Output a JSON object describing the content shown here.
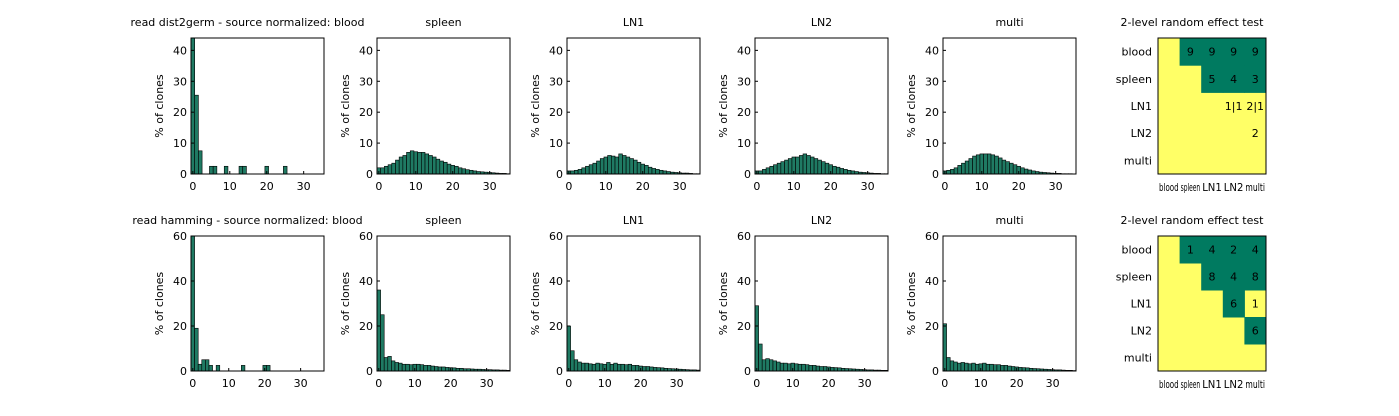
{
  "colors": {
    "bar": "#1f7a63",
    "bar_edge": "#000000",
    "axis": "#000000",
    "heat_low": "#ffff66",
    "heat_high": "#007a60"
  },
  "chart_data": [
    {
      "type": "bar",
      "title": "read  dist2germ - source normalized: blood",
      "ylabel": "% of clones",
      "xlim": [
        -0.5,
        35.5
      ],
      "ylim": [
        0,
        44
      ],
      "xticks": [
        0,
        10,
        20,
        30
      ],
      "yticks": [
        0,
        10,
        20,
        30,
        40
      ],
      "x": [
        0,
        1,
        2,
        3,
        4,
        5,
        6,
        7,
        8,
        9,
        10,
        11,
        12,
        13,
        14,
        15,
        16,
        17,
        18,
        19,
        20,
        21,
        22,
        23,
        24,
        25,
        26,
        27,
        28,
        29,
        30,
        31,
        32,
        33,
        34,
        35
      ],
      "values": [
        44,
        25.5,
        7.5,
        0,
        0,
        2.5,
        2.5,
        0,
        0,
        2.5,
        0,
        0,
        0,
        2.5,
        2.5,
        0,
        0,
        0,
        0,
        0,
        2.5,
        0,
        0,
        0,
        0,
        2.5,
        0,
        0,
        0,
        0,
        0,
        0,
        0,
        0,
        0,
        0
      ]
    },
    {
      "type": "bar",
      "title": "spleen",
      "ylabel": "% of clones",
      "xlim": [
        -0.5,
        35.5
      ],
      "ylim": [
        0,
        44
      ],
      "xticks": [
        0,
        10,
        20,
        30
      ],
      "yticks": [
        0,
        10,
        20,
        30,
        40
      ],
      "x": [
        0,
        1,
        2,
        3,
        4,
        5,
        6,
        7,
        8,
        9,
        10,
        11,
        12,
        13,
        14,
        15,
        16,
        17,
        18,
        19,
        20,
        21,
        22,
        23,
        24,
        25,
        26,
        27,
        28,
        29,
        30,
        31,
        32,
        33,
        34,
        35
      ],
      "values": [
        2,
        2,
        2.5,
        3,
        3.5,
        4.5,
        5.5,
        6,
        7,
        7.5,
        7.2,
        7,
        7,
        6.5,
        6,
        5.5,
        4.8,
        4.2,
        3.8,
        3.2,
        2.8,
        2.5,
        2,
        1.7,
        1.4,
        1.2,
        1,
        0.8,
        0.7,
        0.6,
        0.5,
        0.4,
        0.3,
        0.2,
        0.2,
        0.1
      ]
    },
    {
      "type": "bar",
      "title": "LN1",
      "ylabel": "% of clones",
      "xlim": [
        -0.5,
        35.5
      ],
      "ylim": [
        0,
        44
      ],
      "xticks": [
        0,
        10,
        20,
        30
      ],
      "yticks": [
        0,
        10,
        20,
        30,
        40
      ],
      "x": [
        0,
        1,
        2,
        3,
        4,
        5,
        6,
        7,
        8,
        9,
        10,
        11,
        12,
        13,
        14,
        15,
        16,
        17,
        18,
        19,
        20,
        21,
        22,
        23,
        24,
        25,
        26,
        27,
        28,
        29,
        30,
        31,
        32,
        33,
        34,
        35
      ],
      "values": [
        1,
        1,
        1.2,
        1.5,
        2,
        2.5,
        3,
        3.5,
        4.2,
        5,
        5.5,
        6,
        5.8,
        5.5,
        6.5,
        6,
        5.5,
        5,
        4.5,
        3.8,
        3.2,
        2.8,
        2.2,
        1.8,
        1.5,
        1.2,
        1,
        0.8,
        0.6,
        0.5,
        0.4,
        0.3,
        0.3,
        0.2,
        0.1,
        0.1
      ]
    },
    {
      "type": "bar",
      "title": "LN2",
      "ylabel": "% of clones",
      "xlim": [
        -0.5,
        35.5
      ],
      "ylim": [
        0,
        44
      ],
      "xticks": [
        0,
        10,
        20,
        30
      ],
      "yticks": [
        0,
        10,
        20,
        30,
        40
      ],
      "x": [
        0,
        1,
        2,
        3,
        4,
        5,
        6,
        7,
        8,
        9,
        10,
        11,
        12,
        13,
        14,
        15,
        16,
        17,
        18,
        19,
        20,
        21,
        22,
        23,
        24,
        25,
        26,
        27,
        28,
        29,
        30,
        31,
        32,
        33,
        34,
        35
      ],
      "values": [
        1,
        1,
        1.5,
        2,
        2.5,
        3,
        3.5,
        4,
        4.5,
        5,
        5.5,
        5.5,
        6,
        6.5,
        6,
        5.5,
        5,
        4.5,
        4,
        3.5,
        3,
        2.5,
        2.2,
        1.8,
        1.5,
        1.2,
        1,
        0.8,
        0.6,
        0.5,
        0.4,
        0.3,
        0.2,
        0.2,
        0.1,
        0.1
      ]
    },
    {
      "type": "bar",
      "title": "multi",
      "ylabel": "% of clones",
      "xlim": [
        -0.5,
        35.5
      ],
      "ylim": [
        0,
        44
      ],
      "xticks": [
        0,
        10,
        20,
        30
      ],
      "yticks": [
        0,
        10,
        20,
        30,
        40
      ],
      "x": [
        0,
        1,
        2,
        3,
        4,
        5,
        6,
        7,
        8,
        9,
        10,
        11,
        12,
        13,
        14,
        15,
        16,
        17,
        18,
        19,
        20,
        21,
        22,
        23,
        24,
        25,
        26,
        27,
        28,
        29,
        30,
        31,
        32,
        33,
        34,
        35
      ],
      "values": [
        1,
        1.2,
        1.5,
        2,
        2.8,
        3.5,
        4.2,
        5,
        5.8,
        6.2,
        6.5,
        6.5,
        6.5,
        6.2,
        5.8,
        5.2,
        4.5,
        4,
        3.5,
        3,
        2.5,
        2,
        1.6,
        1.3,
        1,
        0.8,
        0.6,
        0.5,
        0.4,
        0.3,
        0.2,
        0.2,
        0.1,
        0.1,
        0.1,
        0
      ]
    },
    {
      "type": "heatmap",
      "title": "2-level random effect test",
      "categories": [
        "blood",
        "spleen",
        "LN1",
        "LN2",
        "multi"
      ],
      "cells": [
        {
          "row": 0,
          "col": 1,
          "color": "high",
          "label": "9"
        },
        {
          "row": 0,
          "col": 2,
          "color": "high",
          "label": "9"
        },
        {
          "row": 0,
          "col": 3,
          "color": "high",
          "label": "9"
        },
        {
          "row": 0,
          "col": 4,
          "color": "high",
          "label": "9"
        },
        {
          "row": 1,
          "col": 2,
          "color": "high",
          "label": "5"
        },
        {
          "row": 1,
          "col": 3,
          "color": "high",
          "label": "4"
        },
        {
          "row": 1,
          "col": 4,
          "color": "high",
          "label": "3"
        },
        {
          "row": 2,
          "col": 3,
          "color": "low",
          "label": "1|1"
        },
        {
          "row": 2,
          "col": 4,
          "color": "low",
          "label": "2|1"
        },
        {
          "row": 3,
          "col": 4,
          "color": "low",
          "label": "2"
        }
      ]
    },
    {
      "type": "bar",
      "title": "read hamming - source normalized: blood",
      "ylabel": "% of clones",
      "xlim": [
        -0.5,
        36.5
      ],
      "ylim": [
        0,
        60
      ],
      "xticks": [
        0,
        10,
        20,
        30
      ],
      "yticks": [
        0,
        20,
        40,
        60
      ],
      "x": [
        0,
        1,
        2,
        3,
        4,
        5,
        6,
        7,
        8,
        9,
        10,
        11,
        12,
        13,
        14,
        15,
        16,
        17,
        18,
        19,
        20,
        21,
        22,
        23,
        24,
        25,
        26,
        27,
        28,
        29,
        30,
        31,
        32,
        33,
        34,
        35,
        36
      ],
      "values": [
        60,
        19,
        3,
        5,
        5,
        2.5,
        0,
        2.5,
        0,
        0,
        0,
        0,
        0,
        0,
        2.5,
        0,
        0,
        0,
        0,
        0,
        2.5,
        2.5,
        0,
        0,
        0,
        0,
        0,
        0,
        0,
        0,
        0,
        0,
        0,
        0,
        0,
        0,
        0
      ]
    },
    {
      "type": "bar",
      "title": "spleen",
      "ylabel": "% of clones",
      "xlim": [
        -0.5,
        36.5
      ],
      "ylim": [
        0,
        60
      ],
      "xticks": [
        0,
        10,
        20,
        30
      ],
      "yticks": [
        0,
        20,
        40,
        60
      ],
      "x": [
        0,
        1,
        2,
        3,
        4,
        5,
        6,
        7,
        8,
        9,
        10,
        11,
        12,
        13,
        14,
        15,
        16,
        17,
        18,
        19,
        20,
        21,
        22,
        23,
        24,
        25,
        26,
        27,
        28,
        29,
        30,
        31,
        32,
        33,
        34,
        35,
        36
      ],
      "values": [
        36,
        25,
        6,
        6.5,
        4.5,
        3.8,
        3.5,
        3,
        3,
        2.8,
        3,
        3,
        2.8,
        2.5,
        2.5,
        2.2,
        2,
        1.8,
        1.8,
        1.6,
        1.5,
        1.4,
        1.2,
        1.2,
        1,
        1,
        0.9,
        0.8,
        0.8,
        0.7,
        0.6,
        0.6,
        0.5,
        0.5,
        0.4,
        0.4,
        0.3
      ]
    },
    {
      "type": "bar",
      "title": "LN1",
      "ylabel": "% of clones",
      "xlim": [
        -0.5,
        36.5
      ],
      "ylim": [
        0,
        60
      ],
      "xticks": [
        0,
        10,
        20,
        30
      ],
      "yticks": [
        0,
        20,
        40,
        60
      ],
      "x": [
        0,
        1,
        2,
        3,
        4,
        5,
        6,
        7,
        8,
        9,
        10,
        11,
        12,
        13,
        14,
        15,
        16,
        17,
        18,
        19,
        20,
        21,
        22,
        23,
        24,
        25,
        26,
        27,
        28,
        29,
        30,
        31,
        32,
        33,
        34,
        35,
        36
      ],
      "values": [
        20,
        9,
        5,
        4,
        3.5,
        3.5,
        3.2,
        3,
        3.5,
        3.2,
        3,
        3.8,
        3,
        3.5,
        3,
        3,
        2.8,
        3,
        2.5,
        2.5,
        2.2,
        2,
        2,
        1.8,
        1.6,
        1.5,
        1.4,
        1.2,
        1.1,
        1,
        0.9,
        0.8,
        0.7,
        0.6,
        0.5,
        0.5,
        0.4
      ]
    },
    {
      "type": "bar",
      "title": "LN2",
      "ylabel": "% of clones",
      "xlim": [
        -0.5,
        36.5
      ],
      "ylim": [
        0,
        60
      ],
      "xticks": [
        0,
        10,
        20,
        30
      ],
      "yticks": [
        0,
        20,
        40,
        60
      ],
      "x": [
        0,
        1,
        2,
        3,
        4,
        5,
        6,
        7,
        8,
        9,
        10,
        11,
        12,
        13,
        14,
        15,
        16,
        17,
        18,
        19,
        20,
        21,
        22,
        23,
        24,
        25,
        26,
        27,
        28,
        29,
        30,
        31,
        32,
        33,
        34,
        35,
        36
      ],
      "values": [
        29,
        12,
        5,
        5.5,
        5,
        4.5,
        4,
        3.5,
        3.5,
        3.2,
        3.5,
        3.2,
        3,
        3,
        2.8,
        2.5,
        2.5,
        2.2,
        2,
        2,
        1.8,
        1.6,
        1.5,
        1.4,
        1.2,
        1.1,
        1,
        0.9,
        0.8,
        0.7,
        0.6,
        0.5,
        0.5,
        0.4,
        0.4,
        0.3,
        0.3
      ]
    },
    {
      "type": "bar",
      "title": "multi",
      "ylabel": "% of clones",
      "xlim": [
        -0.5,
        36.5
      ],
      "ylim": [
        0,
        60
      ],
      "xticks": [
        0,
        10,
        20,
        30
      ],
      "yticks": [
        0,
        20,
        40,
        60
      ],
      "x": [
        0,
        1,
        2,
        3,
        4,
        5,
        6,
        7,
        8,
        9,
        10,
        11,
        12,
        13,
        14,
        15,
        16,
        17,
        18,
        19,
        20,
        21,
        22,
        23,
        24,
        25,
        26,
        27,
        28,
        29,
        30,
        31,
        32,
        33,
        34,
        35,
        36
      ],
      "values": [
        21,
        6,
        4.5,
        4,
        3.5,
        3.8,
        3.5,
        3.2,
        3.5,
        3,
        3.2,
        3.5,
        3,
        3,
        2.8,
        2.8,
        2.5,
        2.5,
        2.2,
        2,
        1.8,
        1.6,
        1.5,
        1.4,
        1.2,
        1.1,
        1,
        0.9,
        0.8,
        0.7,
        0.6,
        0.5,
        0.5,
        0.4,
        0.3,
        0.3,
        0.2
      ]
    },
    {
      "type": "heatmap",
      "title": "2-level random effect test",
      "categories": [
        "blood",
        "spleen",
        "LN1",
        "LN2",
        "multi"
      ],
      "cells": [
        {
          "row": 0,
          "col": 1,
          "color": "high",
          "label": "1"
        },
        {
          "row": 0,
          "col": 2,
          "color": "high",
          "label": "4"
        },
        {
          "row": 0,
          "col": 3,
          "color": "high",
          "label": "2"
        },
        {
          "row": 0,
          "col": 4,
          "color": "high",
          "label": "4"
        },
        {
          "row": 1,
          "col": 2,
          "color": "high",
          "label": "8"
        },
        {
          "row": 1,
          "col": 3,
          "color": "high",
          "label": "4"
        },
        {
          "row": 1,
          "col": 4,
          "color": "high",
          "label": "8"
        },
        {
          "row": 2,
          "col": 3,
          "color": "high",
          "label": "6"
        },
        {
          "row": 2,
          "col": 4,
          "color": "low",
          "label": "1"
        },
        {
          "row": 3,
          "col": 4,
          "color": "high",
          "label": "6"
        }
      ]
    }
  ]
}
